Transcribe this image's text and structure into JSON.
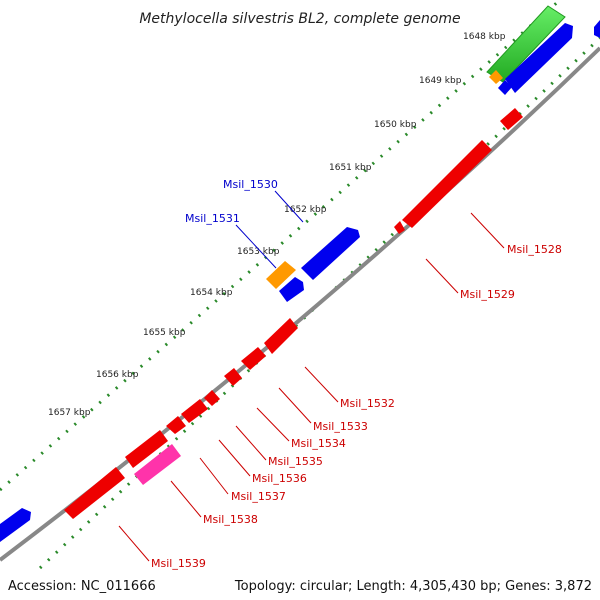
{
  "title": "Methylocella silvestris BL2, complete genome",
  "accession": "Accession: NC_011666",
  "summary": "Topology: circular; Length: 4,305,430 bp; Genes: 3,872",
  "colors": {
    "forward_gene": "#0000ee",
    "reverse_gene": "#ee0000",
    "rrna": "#33cc33",
    "orange_feature": "#ff9900",
    "magenta_feature": "#ff33aa",
    "backbone": "#888888",
    "dots": "#2a8a2a",
    "blue_label": "#0000cc",
    "red_label": "#cc0000"
  },
  "ticks": [
    {
      "label": "1648 kbp"
    },
    {
      "label": "1649 kbp"
    },
    {
      "label": "1650 kbp"
    },
    {
      "label": "1651 kbp"
    },
    {
      "label": "1652 kbp"
    },
    {
      "label": "1653 kbp"
    },
    {
      "label": "1654 kbp"
    },
    {
      "label": "1655 kbp"
    },
    {
      "label": "1656 kbp"
    },
    {
      "label": "1657 kbp"
    }
  ],
  "gene_labels_forward": [
    "Msil_1530",
    "Msil_1531"
  ],
  "gene_labels_reverse": [
    "Msil_1528",
    "Msil_1529",
    "Msil_1532",
    "Msil_1533",
    "Msil_1534",
    "Msil_1535",
    "Msil_1536",
    "Msil_1537",
    "Msil_1538",
    "Msil_1539"
  ]
}
